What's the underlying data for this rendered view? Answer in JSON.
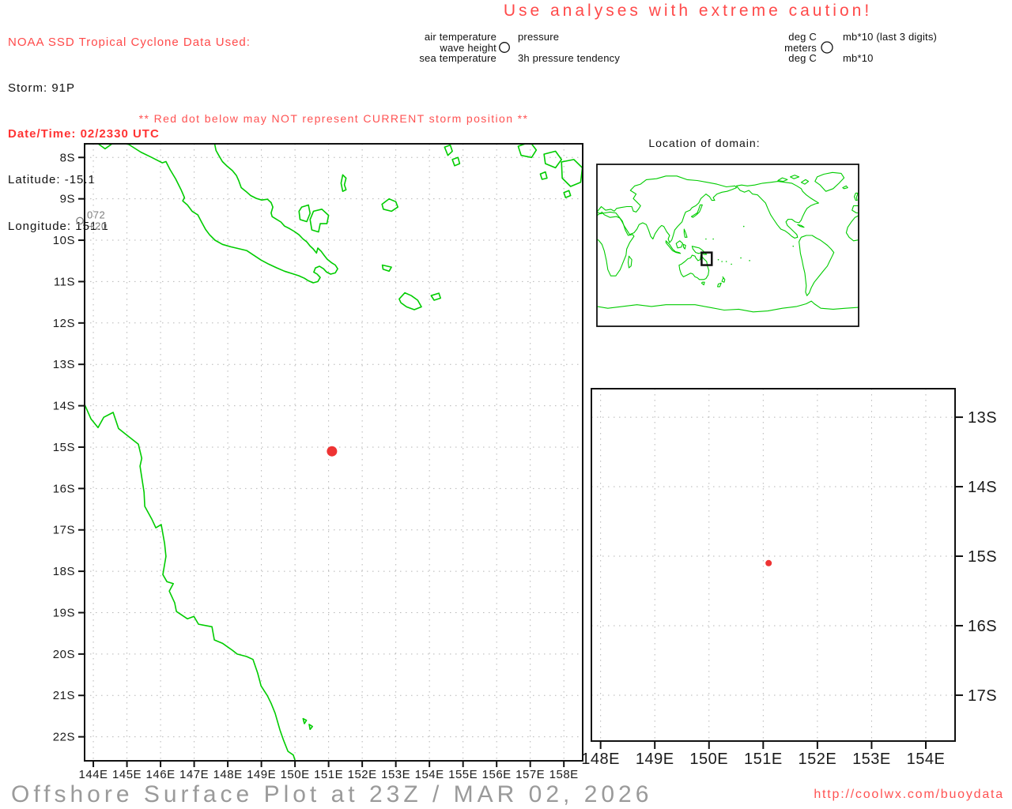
{
  "header": {
    "source": "NOAA SSD Tropical Cyclone Data Used:",
    "storm": "Storm: 91P",
    "datetime": "Date/Time: 02/2330 UTC",
    "latitude": "Latitude: -15.1",
    "longitude": "Longitude: 151.1"
  },
  "caution": "Use analyses with extreme caution!",
  "station_legend": {
    "labels": {
      "r1l": "air temperature",
      "r2l": "wave height",
      "r3l": "sea temperature",
      "r1r": "pressure",
      "r3r": "3h pressure tendency"
    },
    "units": {
      "r1l": "deg C",
      "r2l": "meters",
      "r3l": "deg C",
      "r1r": "mb*10 (last 3 digits)",
      "r3r": "mb*10"
    }
  },
  "warning": "** Red dot below may NOT represent CURRENT storm position **",
  "world_inset": {
    "title": "Location of domain:",
    "domain_box": {
      "lon_min": 144,
      "lon_max": 158,
      "lat_min": -22,
      "lat_max": -8
    }
  },
  "main_map": {
    "lon_range": [
      143.74,
      158.56
    ],
    "lat_range": [
      -22.58,
      -7.67
    ],
    "x_ticks": [
      {
        "lon": 144,
        "label": "144E"
      },
      {
        "lon": 145,
        "label": "145E"
      },
      {
        "lon": 146,
        "label": "146E"
      },
      {
        "lon": 147,
        "label": "147E"
      },
      {
        "lon": 148,
        "label": "148E"
      },
      {
        "lon": 149,
        "label": "149E"
      },
      {
        "lon": 150,
        "label": "150E"
      },
      {
        "lon": 151,
        "label": "151E"
      },
      {
        "lon": 152,
        "label": "152E"
      },
      {
        "lon": 153,
        "label": "153E"
      },
      {
        "lon": 154,
        "label": "154E"
      },
      {
        "lon": 155,
        "label": "155E"
      },
      {
        "lon": 156,
        "label": "156E"
      },
      {
        "lon": 157,
        "label": "157E"
      },
      {
        "lon": 158,
        "label": "158E"
      }
    ],
    "y_ticks": [
      {
        "lat": -8,
        "label": "8S"
      },
      {
        "lat": -9,
        "label": "9S"
      },
      {
        "lat": -10,
        "label": "10S"
      },
      {
        "lat": -11,
        "label": "11S"
      },
      {
        "lat": -12,
        "label": "12S"
      },
      {
        "lat": -13,
        "label": "13S"
      },
      {
        "lat": -14,
        "label": "14S"
      },
      {
        "lat": -15,
        "label": "15S"
      },
      {
        "lat": -16,
        "label": "16S"
      },
      {
        "lat": -17,
        "label": "17S"
      },
      {
        "lat": -18,
        "label": "18S"
      },
      {
        "lat": -19,
        "label": "19S"
      },
      {
        "lat": -20,
        "label": "20S"
      },
      {
        "lat": -21,
        "label": "21S"
      },
      {
        "lat": -22,
        "label": "22S"
      }
    ],
    "storm_dot": {
      "lon": 151.1,
      "lat": -15.1
    },
    "station_plot": {
      "lon": 143.6,
      "lat": -9.53,
      "pressure": "072",
      "tendency": "+20"
    }
  },
  "zoom_map": {
    "lon_range": [
      147.83,
      154.54
    ],
    "lat_range": [
      -17.66,
      -12.59
    ],
    "x_ticks": [
      {
        "lon": 148,
        "label": "148E"
      },
      {
        "lon": 149,
        "label": "149E"
      },
      {
        "lon": 150,
        "label": "150E"
      },
      {
        "lon": 151,
        "label": "151E"
      },
      {
        "lon": 152,
        "label": "152E"
      },
      {
        "lon": 153,
        "label": "153E"
      },
      {
        "lon": 154,
        "label": "154E"
      }
    ],
    "y_ticks": [
      {
        "lat": -13,
        "label": "13S"
      },
      {
        "lat": -14,
        "label": "14S"
      },
      {
        "lat": -15,
        "label": "15S"
      },
      {
        "lat": -16,
        "label": "16S"
      },
      {
        "lat": -17,
        "label": "17S"
      }
    ],
    "storm_dot": {
      "lon": 151.1,
      "lat": -15.1
    }
  },
  "footer": {
    "title": "Offshore Surface Plot at 23Z / MAR 02, 2026",
    "url": "http://coolwx.com/buoydata"
  },
  "colors": {
    "coast": "#00cc00",
    "storm_dot": "#ee3333",
    "grid": "#b5b5b5",
    "border": "#111111",
    "axis_text": "#1a1a1a",
    "station": "#7d7d7d",
    "footer_title": "#9a9a9a",
    "red_text": "#ff4a4a"
  }
}
